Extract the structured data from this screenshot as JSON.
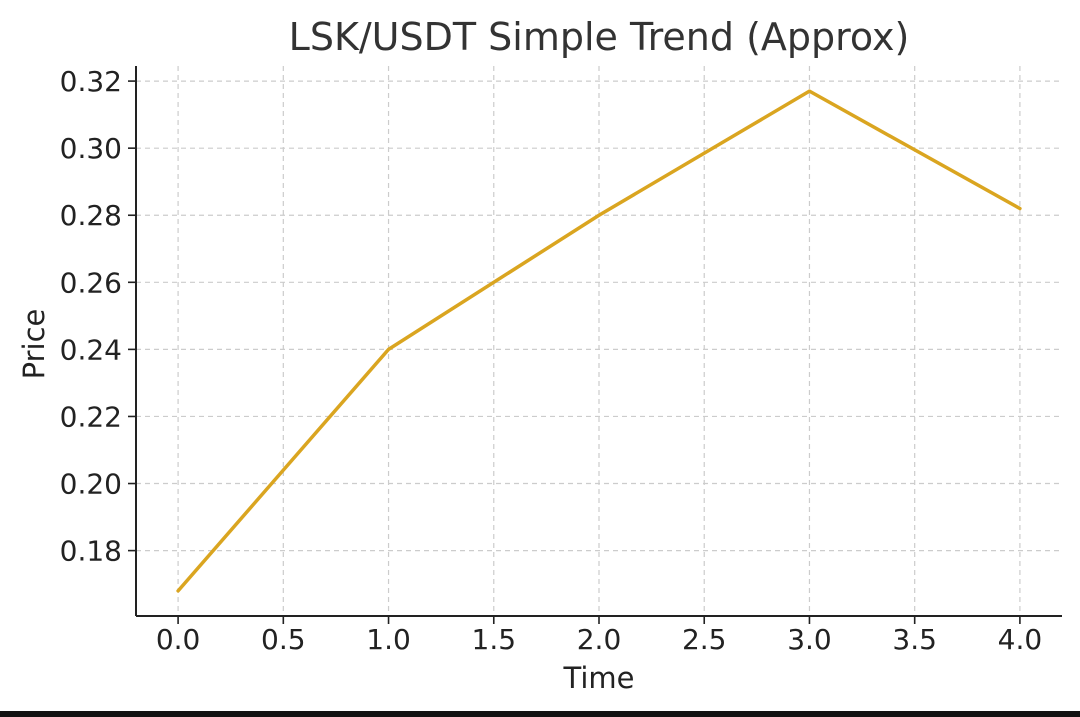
{
  "chart_data": {
    "type": "line",
    "title": "LSK/USDT Simple Trend (Approx)",
    "xlabel": "Time",
    "ylabel": "Price",
    "x": [
      0,
      1,
      2,
      3,
      4
    ],
    "series": [
      {
        "values": [
          0.168,
          0.24,
          0.28,
          0.317,
          0.282
        ],
        "color": "#DAA520"
      }
    ],
    "xlim": [
      -0.2,
      4.2
    ],
    "ylim": [
      0.1605,
      0.3245
    ],
    "xticks": [
      0.0,
      0.5,
      1.0,
      1.5,
      2.0,
      2.5,
      3.0,
      3.5,
      4.0
    ],
    "xtick_labels": [
      "0.0",
      "0.5",
      "1.0",
      "1.5",
      "2.0",
      "2.5",
      "3.0",
      "3.5",
      "4.0"
    ],
    "yticks": [
      0.18,
      0.2,
      0.22,
      0.24,
      0.26,
      0.28,
      0.3,
      0.32
    ],
    "ytick_labels": [
      "0.18",
      "0.20",
      "0.22",
      "0.24",
      "0.26",
      "0.28",
      "0.30",
      "0.32"
    ],
    "grid": true,
    "grid_style": "dashed",
    "axis_color": "#222222",
    "grid_color": "#cccccc"
  }
}
